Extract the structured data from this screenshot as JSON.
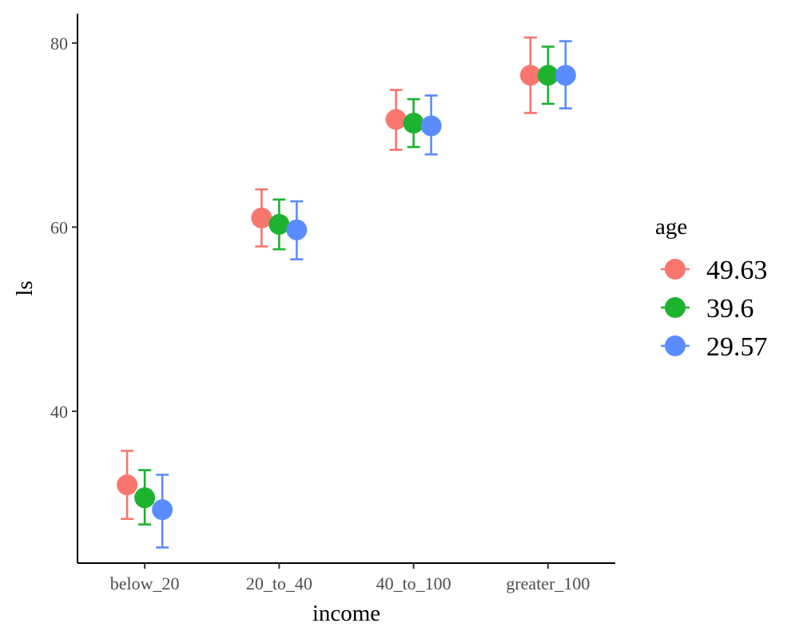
{
  "chart_data": {
    "type": "scatter",
    "xlabel": "income",
    "ylabel": "ls",
    "categories": [
      "below_20",
      "20_to_40",
      "40_to_100",
      "greater_100"
    ],
    "yticks": [
      40,
      60,
      80
    ],
    "ylim": [
      23.5,
      83.2
    ],
    "grid": false,
    "legend": {
      "title": "age",
      "placement": "right"
    },
    "series": [
      {
        "name": "49.63",
        "color": "#F8766D",
        "values": [
          32.0,
          61.0,
          71.7,
          76.5
        ],
        "lower": [
          28.3,
          57.9,
          68.4,
          72.4
        ],
        "upper": [
          35.7,
          64.1,
          74.9,
          80.6
        ]
      },
      {
        "name": "39.6",
        "color": "#1DB32F",
        "values": [
          30.6,
          60.3,
          71.3,
          76.5
        ],
        "lower": [
          27.7,
          57.6,
          68.7,
          73.4
        ],
        "upper": [
          33.6,
          63.0,
          73.9,
          79.6
        ]
      },
      {
        "name": "29.57",
        "color": "#5A8CFF",
        "values": [
          29.3,
          59.7,
          71.0,
          76.5
        ],
        "lower": [
          25.2,
          56.5,
          67.9,
          72.9
        ],
        "upper": [
          33.1,
          62.8,
          74.3,
          80.2
        ]
      }
    ]
  }
}
